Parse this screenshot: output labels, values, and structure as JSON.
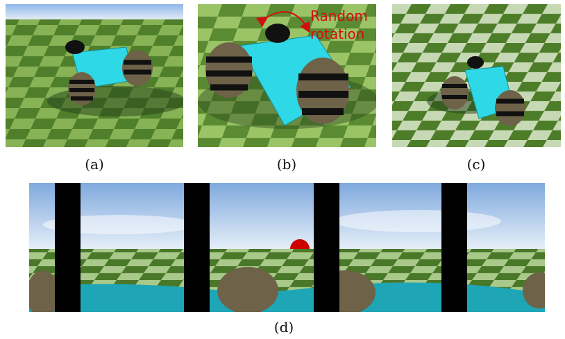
{
  "panels": [
    {
      "id": "a",
      "caption": "(a)"
    },
    {
      "id": "b",
      "caption": "(b)",
      "annotation": {
        "line1": "Random",
        "line2": "rotation"
      }
    },
    {
      "id": "c",
      "caption": "(c)"
    },
    {
      "id": "d",
      "caption": "(d)"
    }
  ],
  "colors": {
    "sky_top": "#8fb6e8",
    "sky_bottom": "#d9e6f5",
    "grass_dark": "#3f6f1d",
    "grass_light": "#8fbf5a",
    "robot_body": "#2fd8e6",
    "wheel_dark": "#111111",
    "wheel_stripe": "#8a7a55",
    "annotation": "#d01010",
    "marker": "#cc0000",
    "divider": "#000000"
  }
}
